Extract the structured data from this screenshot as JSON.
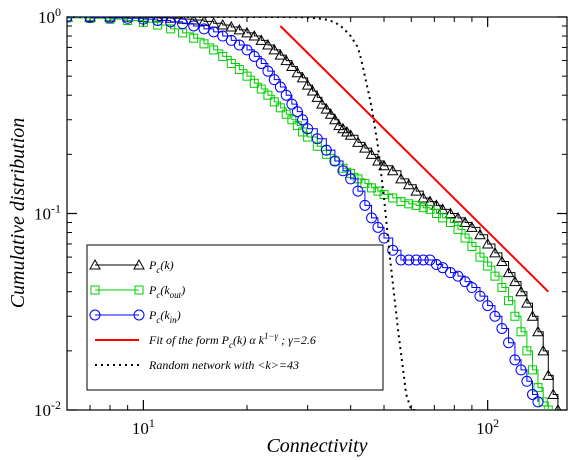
{
  "chart_data": {
    "type": "line",
    "xlabel": "Connectivity",
    "ylabel": "Cumulative distribution",
    "x_scale": "log",
    "y_scale": "log",
    "xlim": [
      6,
      170
    ],
    "ylim": [
      0.01,
      1
    ],
    "x_ticks": [
      {
        "value": 10,
        "base": "10",
        "exp": "1"
      },
      {
        "value": 100,
        "base": "10",
        "exp": "2"
      }
    ],
    "y_ticks": [
      {
        "value": 1,
        "base": "10",
        "exp": "0"
      },
      {
        "value": 0.1,
        "base": "10",
        "exp": "-1"
      },
      {
        "value": 0.01,
        "base": "10",
        "exp": "-2"
      }
    ],
    "legend_position": "bottom-left",
    "series": [
      {
        "name": "Pc(k)",
        "legend": {
          "main": "P",
          "sub": "c",
          "arg": "(k)",
          "argsub": ""
        },
        "color": "#000000",
        "marker": "triangle",
        "line": "solid",
        "step": true,
        "x": [
          6,
          7,
          8,
          9,
          10,
          11,
          12,
          13,
          14,
          15,
          16,
          17,
          18,
          19,
          20,
          21,
          22,
          23,
          24,
          25,
          26,
          27,
          28,
          29,
          30,
          31,
          32,
          33,
          34,
          35,
          36,
          37,
          38,
          39,
          40,
          42,
          44,
          46,
          48,
          50,
          53,
          56,
          59,
          62,
          65,
          68,
          71,
          74,
          78,
          82,
          86,
          90,
          95,
          100,
          105,
          110,
          115,
          120,
          125,
          130,
          135,
          140,
          145,
          150,
          155,
          160
        ],
        "y": [
          1.0,
          1.0,
          1.0,
          1.0,
          0.995,
          0.99,
          0.985,
          0.975,
          0.965,
          0.95,
          0.93,
          0.91,
          0.89,
          0.86,
          0.83,
          0.8,
          0.76,
          0.72,
          0.68,
          0.64,
          0.6,
          0.56,
          0.52,
          0.49,
          0.45,
          0.42,
          0.39,
          0.36,
          0.34,
          0.32,
          0.3,
          0.28,
          0.27,
          0.26,
          0.25,
          0.23,
          0.215,
          0.2,
          0.185,
          0.175,
          0.165,
          0.15,
          0.14,
          0.13,
          0.12,
          0.115,
          0.11,
          0.105,
          0.1,
          0.095,
          0.09,
          0.085,
          0.078,
          0.07,
          0.063,
          0.057,
          0.05,
          0.045,
          0.04,
          0.035,
          0.03,
          0.025,
          0.02,
          0.015,
          0.012,
          0.01
        ]
      },
      {
        "name": "Pc(kout)",
        "legend": {
          "main": "P",
          "sub": "c",
          "arg": "(k",
          "argsub": "out"
        },
        "color": "#00cc00",
        "marker": "square",
        "line": "solid",
        "step": true,
        "x": [
          6,
          7,
          8,
          9,
          10,
          11,
          12,
          13,
          14,
          15,
          16,
          17,
          18,
          19,
          20,
          21,
          22,
          23,
          24,
          25,
          26,
          27,
          28,
          29,
          30,
          32,
          34,
          36,
          38,
          40,
          42,
          44,
          46,
          48,
          50,
          53,
          56,
          59,
          62,
          65,
          68,
          71,
          74,
          78,
          82,
          86,
          90,
          95,
          100,
          105,
          110,
          115,
          120,
          125,
          130,
          135,
          140,
          145,
          150
        ],
        "y": [
          0.99,
          0.985,
          0.975,
          0.96,
          0.94,
          0.91,
          0.87,
          0.83,
          0.78,
          0.73,
          0.68,
          0.63,
          0.58,
          0.54,
          0.5,
          0.46,
          0.43,
          0.4,
          0.37,
          0.345,
          0.32,
          0.3,
          0.28,
          0.26,
          0.245,
          0.22,
          0.2,
          0.185,
          0.17,
          0.16,
          0.15,
          0.142,
          0.135,
          0.13,
          0.125,
          0.12,
          0.115,
          0.112,
          0.11,
          0.107,
          0.105,
          0.1,
          0.095,
          0.09,
          0.083,
          0.075,
          0.068,
          0.06,
          0.054,
          0.048,
          0.042,
          0.036,
          0.03,
          0.025,
          0.02,
          0.016,
          0.013,
          0.011,
          0.01
        ]
      },
      {
        "name": "Pc(kin)",
        "legend": {
          "main": "P",
          "sub": "c",
          "arg": "(k",
          "argsub": "in"
        },
        "color": "#0000ff",
        "marker": "circle",
        "line": "solid",
        "step": true,
        "x": [
          6,
          7,
          8,
          9,
          10,
          11,
          12,
          13,
          14,
          15,
          16,
          17,
          18,
          19,
          20,
          21,
          22,
          23,
          24,
          25,
          26,
          27,
          28,
          29,
          30,
          32,
          34,
          36,
          38,
          40,
          42,
          44,
          46,
          48,
          50,
          53,
          56,
          59,
          62,
          65,
          68,
          71,
          74,
          78,
          82,
          86,
          90,
          95,
          100,
          105,
          110,
          115,
          120,
          125,
          130,
          135,
          140
        ],
        "y": [
          1.0,
          0.995,
          0.99,
          0.985,
          0.975,
          0.96,
          0.945,
          0.925,
          0.9,
          0.87,
          0.84,
          0.8,
          0.76,
          0.72,
          0.68,
          0.63,
          0.58,
          0.53,
          0.48,
          0.44,
          0.4,
          0.36,
          0.33,
          0.3,
          0.27,
          0.24,
          0.21,
          0.185,
          0.165,
          0.15,
          0.13,
          0.11,
          0.095,
          0.085,
          0.075,
          0.065,
          0.058,
          0.058,
          0.058,
          0.058,
          0.058,
          0.055,
          0.053,
          0.05,
          0.048,
          0.045,
          0.042,
          0.038,
          0.034,
          0.03,
          0.026,
          0.022,
          0.018,
          0.016,
          0.014,
          0.012,
          0.011
        ]
      },
      {
        "name": "Fit of the form Pc(k) α k1−γ ; γ=2.6",
        "legend": {
          "fit": true
        },
        "color": "#ff0000",
        "marker": "none",
        "line": "solid",
        "step": false,
        "x": [
          25,
          150
        ],
        "y": [
          0.9,
          0.04
        ]
      },
      {
        "name": "Random network with <k>=43",
        "legend": {
          "plain": "Random network with <k>=43"
        },
        "color": "#000000",
        "marker": "none",
        "line": "dotted",
        "step": false,
        "x": [
          6,
          10,
          15,
          20,
          25,
          28,
          30,
          32,
          34,
          36,
          38,
          40,
          42,
          43,
          44,
          46,
          48,
          50,
          52,
          55,
          58,
          60,
          62
        ],
        "y": [
          1.0,
          1.0,
          1.0,
          1.0,
          1.0,
          0.998,
          0.995,
          0.985,
          0.97,
          0.94,
          0.88,
          0.8,
          0.7,
          0.6,
          0.5,
          0.35,
          0.22,
          0.12,
          0.06,
          0.025,
          0.012,
          0.01,
          0.01
        ]
      }
    ],
    "legend_fit": {
      "prefix": "Fit of the form  P",
      "sub": "c",
      "mid": "(k) α k",
      "sup": "1−γ",
      "suffix": " ;  γ=2.6"
    }
  }
}
